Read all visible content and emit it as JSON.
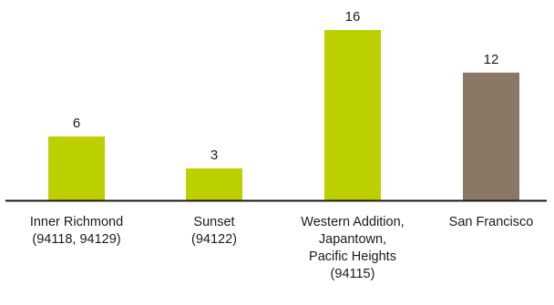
{
  "chart_data": {
    "type": "bar",
    "categories": [
      [
        "Inner Richmond",
        "(94118, 94129)"
      ],
      [
        "Sunset",
        "(94122)"
      ],
      [
        "Western Addition,",
        "Japantown,",
        "Pacific Heights",
        "(94115)"
      ],
      [
        "San Francisco"
      ]
    ],
    "values": [
      6,
      3,
      16,
      12
    ],
    "bar_colors": [
      "#bcd000",
      "#bcd000",
      "#bcd000",
      "#8b7766"
    ],
    "ylim": [
      0,
      16
    ],
    "grid": false,
    "legend": "none",
    "title": "",
    "xlabel": "",
    "ylabel": ""
  }
}
